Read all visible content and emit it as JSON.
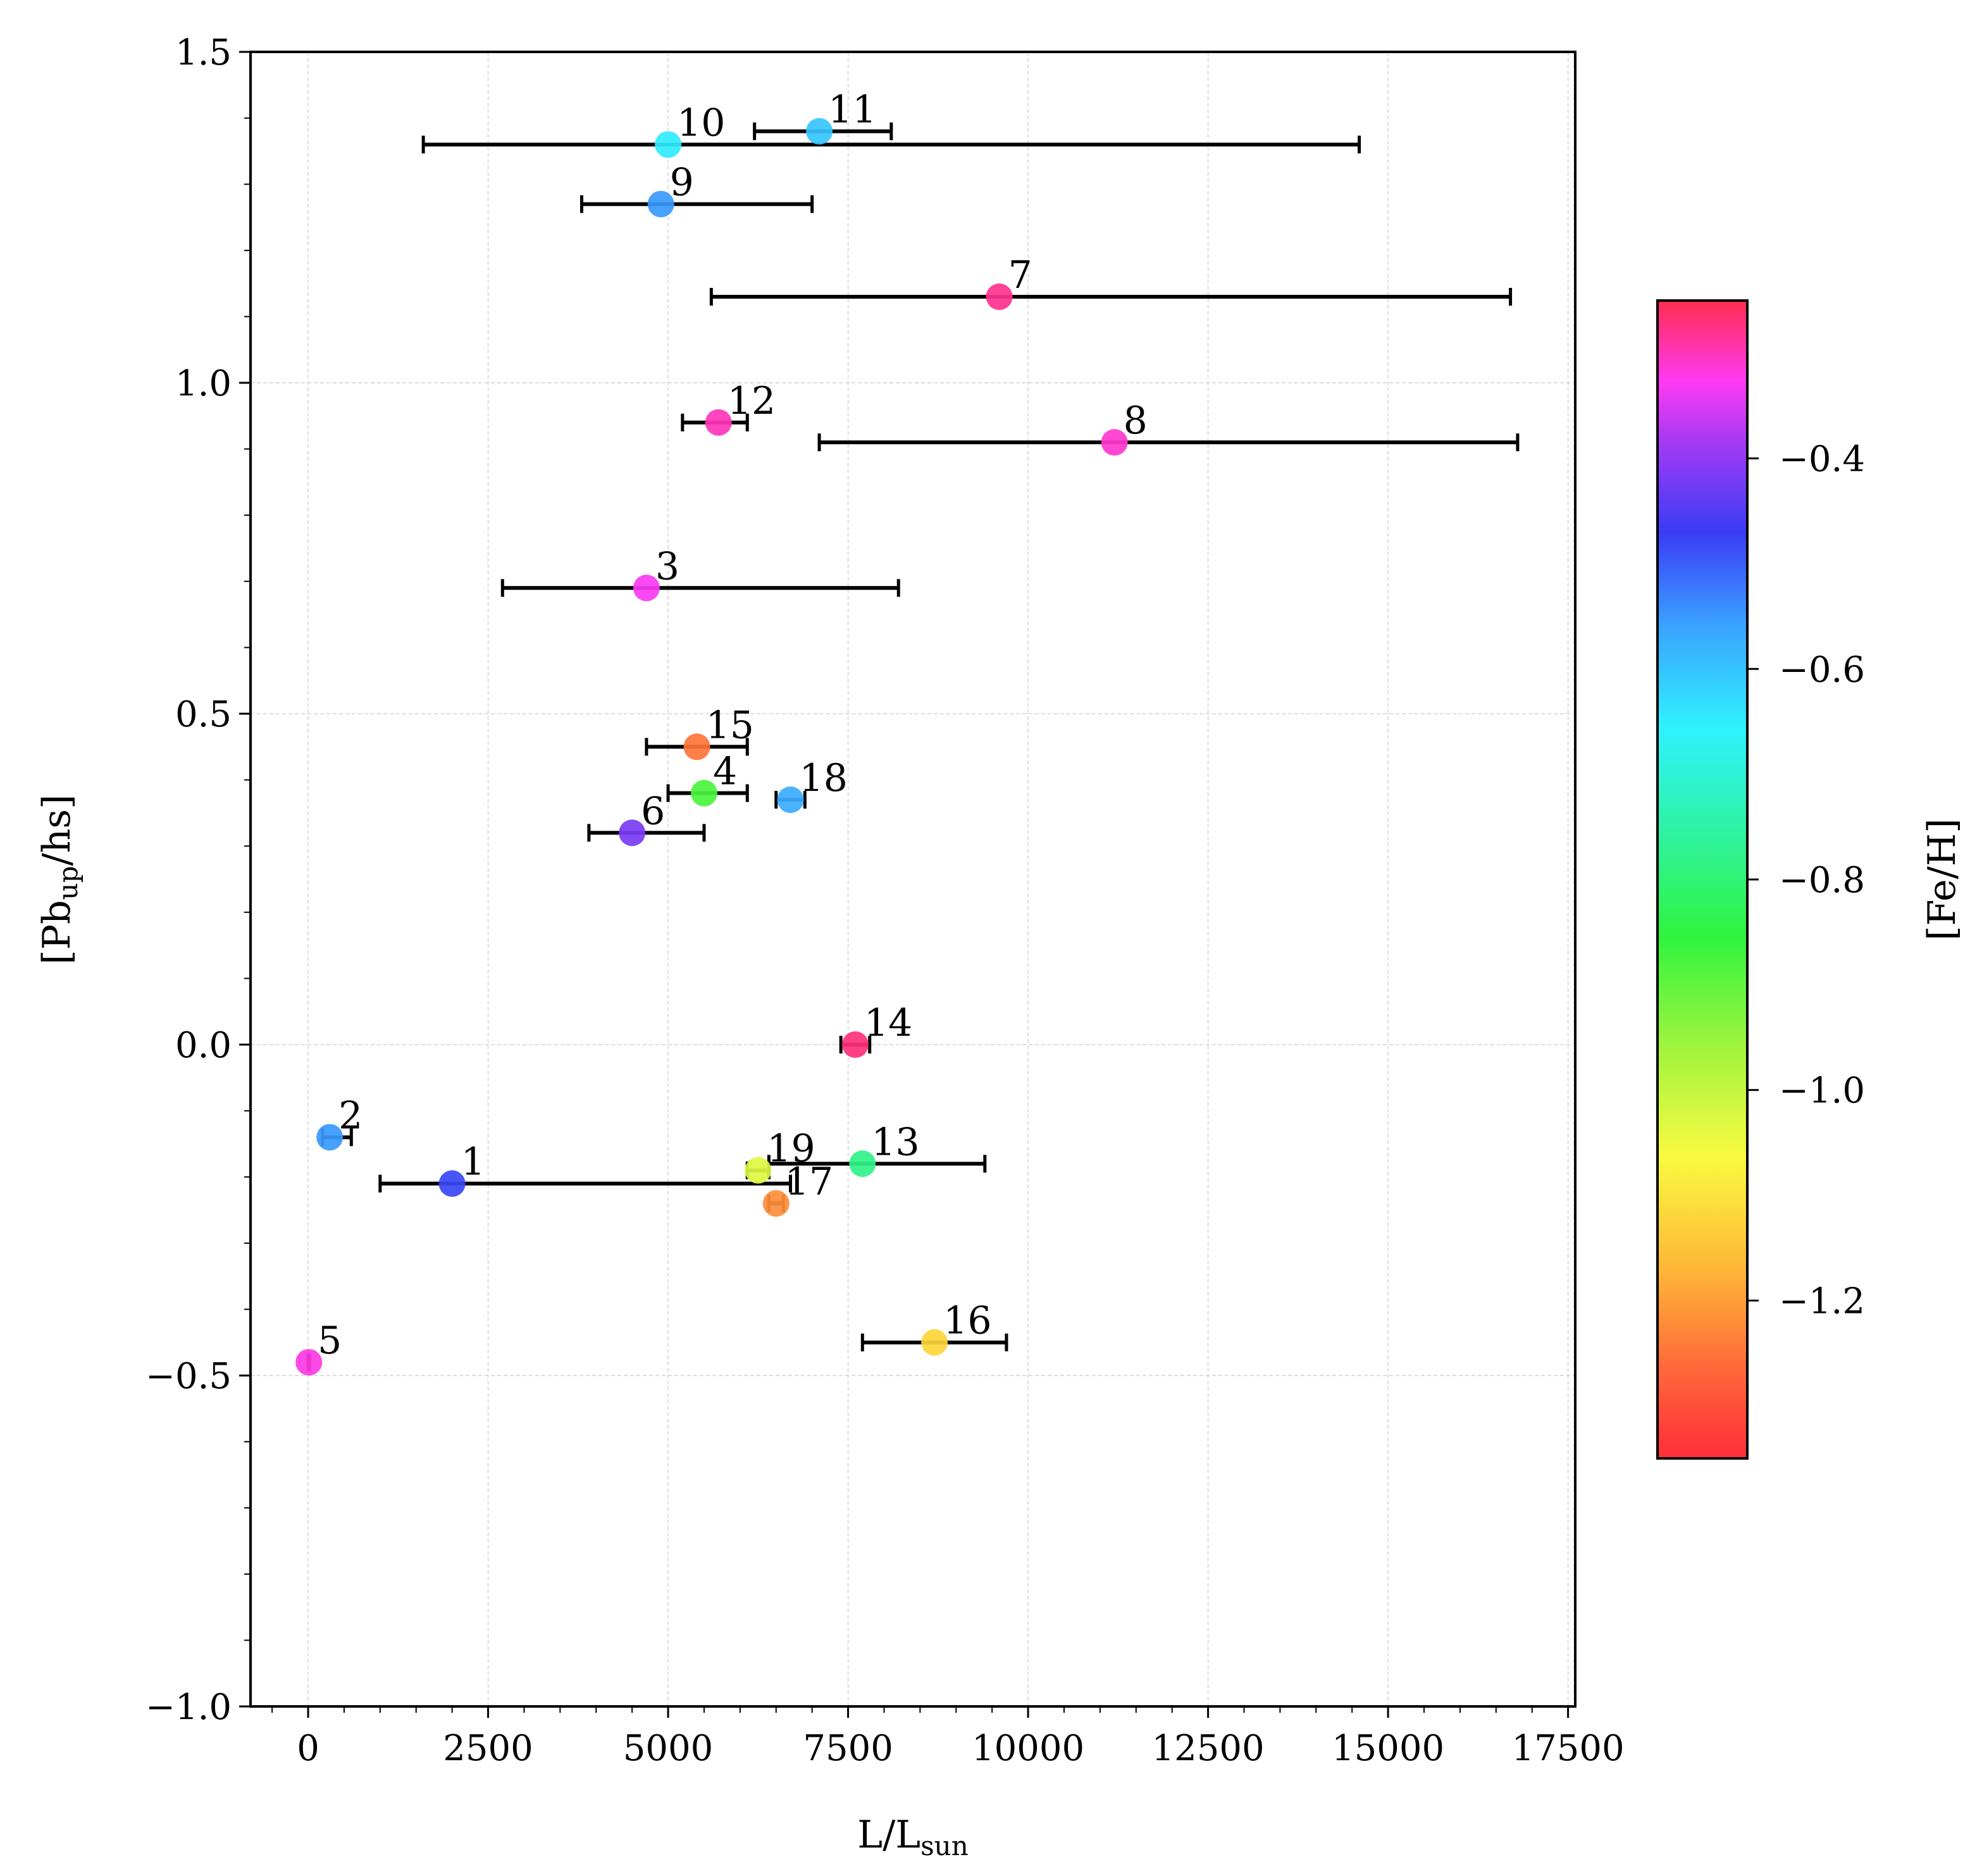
{
  "chart_data": {
    "type": "scatter",
    "title": "",
    "xlabel": "L/L",
    "xlabel_sub": "sun",
    "ylabel_prefix": "[Pb",
    "ylabel_sub": "up",
    "ylabel_suffix": "/hs]",
    "xlim": [
      -800,
      17600
    ],
    "ylim": [
      -1.0,
      1.5
    ],
    "xticks": [
      0,
      2500,
      5000,
      7500,
      10000,
      12500,
      15000,
      17500
    ],
    "xtick_labels": [
      "0",
      "2500",
      "5000",
      "7500",
      "10000",
      "12500",
      "15000",
      "17500"
    ],
    "yticks": [
      -1.0,
      -0.5,
      0.0,
      0.5,
      1.0,
      1.5
    ],
    "ytick_labels": [
      "−1.0",
      "−0.5",
      "0.0",
      "0.5",
      "1.0",
      "1.5"
    ],
    "grid": true,
    "colorbar": {
      "label": "[Fe/H]",
      "range": [
        -1.35,
        -0.25
      ],
      "ticks": [
        -0.4,
        -0.6,
        -0.8,
        -1.0,
        -1.2
      ],
      "tick_labels": [
        "−0.4",
        "−0.6",
        "−0.8",
        "−1.0",
        "−1.2"
      ],
      "colormap": "gist_rainbow"
    },
    "points": [
      {
        "id": "1",
        "x": 2000,
        "y": -0.21,
        "xerr_low": 1000,
        "xerr_high": 6700,
        "feh": -0.48
      },
      {
        "id": "2",
        "x": 300,
        "y": -0.14,
        "xerr_low": 200,
        "xerr_high": 600,
        "feh": -0.55
      },
      {
        "id": "3",
        "x": 4700,
        "y": 0.69,
        "xerr_low": 2700,
        "xerr_high": 8200,
        "feh": -0.33
      },
      {
        "id": "4",
        "x": 5500,
        "y": 0.38,
        "xerr_low": 5000,
        "xerr_high": 6100,
        "feh": -0.88
      },
      {
        "id": "5",
        "x": 10,
        "y": -0.48,
        "xerr_low": 0,
        "xerr_high": 20,
        "feh": -0.32
      },
      {
        "id": "6",
        "x": 4500,
        "y": 0.32,
        "xerr_low": 3900,
        "xerr_high": 5500,
        "feh": -0.42
      },
      {
        "id": "7",
        "x": 9600,
        "y": 1.13,
        "xerr_low": 5600,
        "xerr_high": 16700,
        "feh": -0.28
      },
      {
        "id": "8",
        "x": 11200,
        "y": 0.91,
        "xerr_low": 7100,
        "xerr_high": 16800,
        "feh": -0.31
      },
      {
        "id": "9",
        "x": 4900,
        "y": 1.27,
        "xerr_low": 3800,
        "xerr_high": 7000,
        "feh": -0.55
      },
      {
        "id": "10",
        "x": 5000,
        "y": 1.36,
        "xerr_low": 1600,
        "xerr_high": 14600,
        "feh": -0.65
      },
      {
        "id": "11",
        "x": 7100,
        "y": 1.38,
        "xerr_low": 6200,
        "xerr_high": 8100,
        "feh": -0.6
      },
      {
        "id": "12",
        "x": 5700,
        "y": 0.94,
        "xerr_low": 5200,
        "xerr_high": 6100,
        "feh": -0.3
      },
      {
        "id": "13",
        "x": 7700,
        "y": -0.18,
        "xerr_low": 6400,
        "xerr_high": 9400,
        "feh": -0.78
      },
      {
        "id": "14",
        "x": 7600,
        "y": 0.0,
        "xerr_low": 7400,
        "xerr_high": 7800,
        "feh": -0.27
      },
      {
        "id": "15",
        "x": 5400,
        "y": 0.45,
        "xerr_low": 4700,
        "xerr_high": 6100,
        "feh": -1.25
      },
      {
        "id": "16",
        "x": 8700,
        "y": -0.45,
        "xerr_low": 7700,
        "xerr_high": 9700,
        "feh": -1.12
      },
      {
        "id": "17",
        "x": 6500,
        "y": -0.24,
        "xerr_low": 6400,
        "xerr_high": 6600,
        "feh": -1.22
      },
      {
        "id": "18",
        "x": 6700,
        "y": 0.37,
        "xerr_low": 6500,
        "xerr_high": 6900,
        "feh": -0.57
      },
      {
        "id": "19",
        "x": 6250,
        "y": -0.19,
        "xerr_low": 6100,
        "xerr_high": 6400,
        "feh": -1.03
      }
    ]
  }
}
